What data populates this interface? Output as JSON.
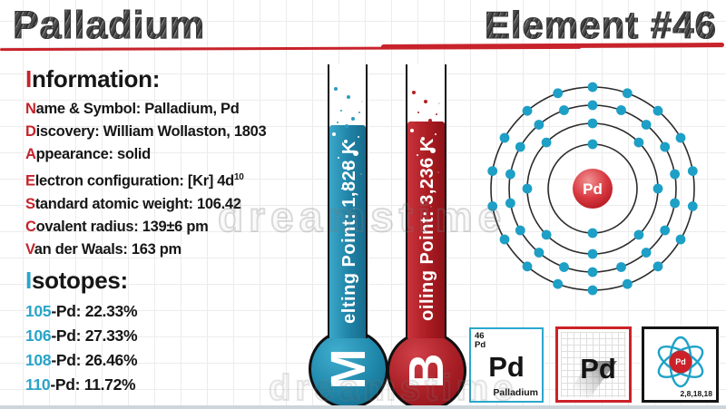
{
  "page": {
    "title": "Palladium",
    "element_label": "Element #46",
    "watermark": "dreamstime"
  },
  "info": {
    "heading": {
      "first": "I",
      "rest": "nformation:"
    },
    "lines": [
      {
        "first": "N",
        "rest": "ame & Symbol: Palladium, Pd"
      },
      {
        "first": "D",
        "rest": "iscovery: William Wollaston, 1803"
      },
      {
        "first": "A",
        "rest": "ppearance: solid"
      },
      {
        "first": "E",
        "rest": "lectron configuration: [Kr] 4d",
        "sup": "10"
      },
      {
        "first": "S",
        "rest": "tandard atomic weight: 106.42"
      },
      {
        "first": "C",
        "rest": "ovalent radius: 139±6 pm"
      },
      {
        "first": "V",
        "rest": "an der Waals: 163 pm"
      }
    ]
  },
  "isotopes": {
    "heading": {
      "first": "I",
      "rest": "sotopes:"
    },
    "items": [
      {
        "mass": "105",
        "rest": "-Pd: 22.33%"
      },
      {
        "mass": "106",
        "rest": "-Pd: 27.33%"
      },
      {
        "mass": "108",
        "rest": "-Pd: 26.46%"
      },
      {
        "mass": "110",
        "rest": "-Pd: 11.72%"
      }
    ]
  },
  "thermometers": [
    {
      "name": "melting-point",
      "bulb_letter": "M",
      "tube_text": "elting Point: 1,828 K",
      "color": "#1f82a6"
    },
    {
      "name": "boiling-point",
      "bulb_letter": "B",
      "tube_text": "oiling Point: 3,236 K",
      "color": "#ab1c22"
    }
  ],
  "atom": {
    "symbol": "Pd",
    "shells": [
      2,
      8,
      18,
      18
    ],
    "electron_color": "#1d9fc6",
    "nucleus_color": "#c8242c",
    "orbit_color": "#2b2b2b"
  },
  "tiles": {
    "periodic": {
      "number": "46",
      "symbol_small": "Pd",
      "symbol": "Pd",
      "name": "Palladium"
    },
    "shadow": {
      "symbol": "Pd"
    },
    "atomic": {
      "symbol": "Pd",
      "shell_config": "2,8,18,18"
    }
  },
  "colors": {
    "accent_red": "#c4232b",
    "accent_cyan": "#29a4c9"
  }
}
